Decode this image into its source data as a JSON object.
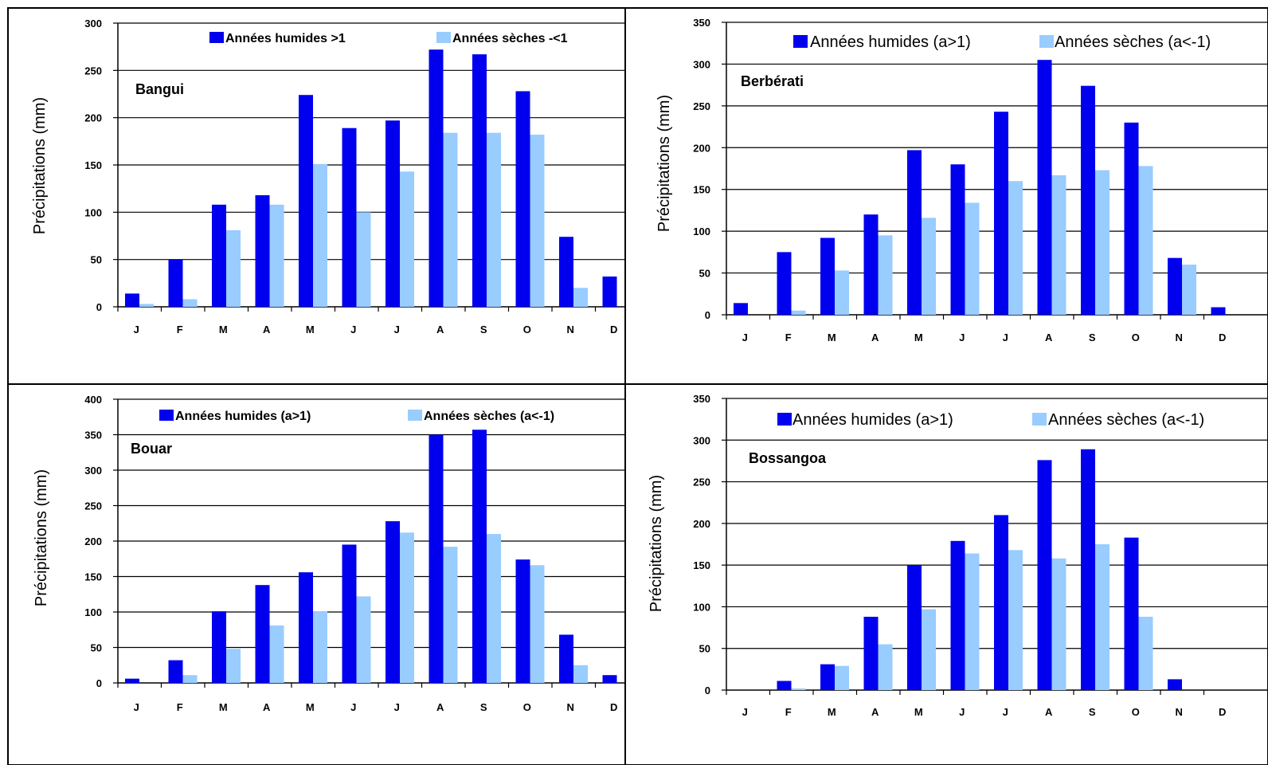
{
  "colors": {
    "wet": "#0000ee",
    "dry": "#99ccff",
    "frame": "#000000",
    "gridline": "#000000"
  },
  "chart_data": [
    {
      "type": "bar",
      "station": "Bangui",
      "months": [
        "J",
        "F",
        "M",
        "A",
        "M",
        "J",
        "J",
        "A",
        "S",
        "O",
        "N",
        "D"
      ],
      "ylabel": "Précipitations (mm)",
      "ylim": [
        0,
        300
      ],
      "yticks": [
        "0",
        "50",
        "100",
        "150",
        "200",
        "250",
        "300"
      ],
      "grid": true,
      "legend_position": "top-right",
      "series": [
        {
          "name": "Années humides >1",
          "values": [
            14,
            50,
            108,
            118,
            224,
            189,
            197,
            272,
            267,
            228,
            74,
            32
          ]
        },
        {
          "name": "Années sèches -<1",
          "values": [
            3,
            8,
            81,
            108,
            151,
            100,
            143,
            184,
            184,
            182,
            20,
            null
          ]
        }
      ]
    },
    {
      "type": "bar",
      "station": "Berbérati",
      "months": [
        "J",
        "F",
        "M",
        "A",
        "M",
        "J",
        "J",
        "A",
        "S",
        "O",
        "N",
        "D"
      ],
      "ylabel": "Précipitations (mm)",
      "ylim": [
        0,
        350
      ],
      "yticks": [
        "0",
        "50",
        "100",
        "150",
        "200",
        "250",
        "300",
        "350"
      ],
      "grid": true,
      "legend_position": "top-right",
      "series": [
        {
          "name": "Années humides (a>1)",
          "values": [
            14,
            75,
            92,
            120,
            197,
            180,
            243,
            305,
            274,
            230,
            68,
            9
          ]
        },
        {
          "name": "Années sèches (a<-1)",
          "values": [
            0,
            5,
            53,
            95,
            116,
            134,
            160,
            167,
            173,
            178,
            60,
            null
          ]
        }
      ]
    },
    {
      "type": "bar",
      "station": "Bouar",
      "months": [
        "J",
        "F",
        "M",
        "A",
        "M",
        "J",
        "J",
        "A",
        "S",
        "O",
        "N",
        "D"
      ],
      "ylabel": "Précipitations (mm)",
      "ylim": [
        0,
        400
      ],
      "yticks": [
        "0",
        "50",
        "100",
        "150",
        "200",
        "250",
        "300",
        "350",
        "400"
      ],
      "grid": true,
      "legend_position": "top-right",
      "series": [
        {
          "name": "Années humides (a>1)",
          "values": [
            6,
            32,
            101,
            138,
            156,
            195,
            228,
            350,
            357,
            174,
            68,
            11
          ]
        },
        {
          "name": "Années sèches (a<-1)",
          "values": [
            0,
            11,
            48,
            81,
            101,
            122,
            212,
            192,
            210,
            166,
            25,
            null
          ]
        }
      ]
    },
    {
      "type": "bar",
      "station": "Bossangoa",
      "months": [
        "J",
        "F",
        "M",
        "A",
        "M",
        "J",
        "J",
        "A",
        "S",
        "O",
        "N",
        "D"
      ],
      "ylabel": "Précipitations (mm)",
      "ylim": [
        0,
        350
      ],
      "yticks": [
        "0",
        "50",
        "100",
        "150",
        "200",
        "250",
        "300",
        "350"
      ],
      "grid": true,
      "legend_position": "top-right",
      "series": [
        {
          "name": "Années humides (a>1)",
          "values": [
            0,
            11,
            31,
            88,
            150,
            179,
            210,
            276,
            289,
            183,
            13,
            null
          ]
        },
        {
          "name": "Années sèches (a<-1)",
          "values": [
            0,
            2,
            29,
            55,
            97,
            164,
            168,
            158,
            175,
            88,
            0,
            null
          ]
        }
      ]
    }
  ]
}
